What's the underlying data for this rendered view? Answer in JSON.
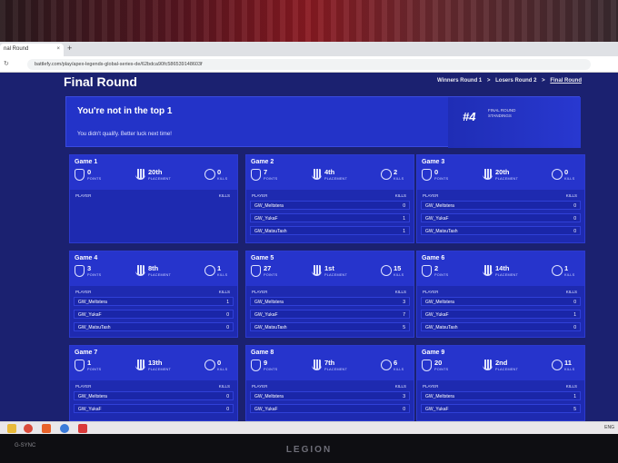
{
  "browser": {
    "tab_title": "nal Round",
    "tab_close": "×",
    "new_tab": "+",
    "url": "battlefy.com/play/apex-legends-global-series-de/62bdca90fc586539148603f"
  },
  "page": {
    "title": "Final Round",
    "breadcrumb": [
      "Winners Round 1",
      ">",
      "Losers Round 2",
      ">",
      "Final Round"
    ]
  },
  "banner": {
    "title": "You're not in the top 1",
    "subtitle": "You didn't qualify. Better luck next time!",
    "rank": "#4",
    "rank_label_1": "FINAL ROUND",
    "rank_label_2": "STANDINGS"
  },
  "labels": {
    "points": "POINTS",
    "placement": "PLACEMENT",
    "kills": "KILLS",
    "player": "PLAYER",
    "kills_col": "KILLS"
  },
  "games": [
    {
      "title": "Game 1",
      "points": "0",
      "placement": "20th",
      "kills": "0",
      "players": []
    },
    {
      "title": "Game 2",
      "points": "7",
      "placement": "4th",
      "kills": "2",
      "players": [
        {
          "name": "GW_Meltstera",
          "kills": "0"
        },
        {
          "name": "GW_YukaF",
          "kills": "1"
        },
        {
          "name": "GW_MatsuTash",
          "kills": "1"
        }
      ]
    },
    {
      "title": "Game 3",
      "points": "0",
      "placement": "20th",
      "kills": "0",
      "players": [
        {
          "name": "GW_Meltstera",
          "kills": "0"
        },
        {
          "name": "GW_YukaF",
          "kills": "0"
        },
        {
          "name": "GW_MatsuTash",
          "kills": "0"
        }
      ]
    },
    {
      "title": "Game 4",
      "points": "3",
      "placement": "8th",
      "kills": "1",
      "players": [
        {
          "name": "GW_Meltstera",
          "kills": "1"
        },
        {
          "name": "GW_YukaF",
          "kills": "0"
        },
        {
          "name": "GW_MatsuTash",
          "kills": "0"
        }
      ]
    },
    {
      "title": "Game 5",
      "points": "27",
      "placement": "1st",
      "kills": "15",
      "players": [
        {
          "name": "GW_Meltstera",
          "kills": "3"
        },
        {
          "name": "GW_YukaF",
          "kills": "7"
        },
        {
          "name": "GW_MatsuTash",
          "kills": "5"
        }
      ]
    },
    {
      "title": "Game 6",
      "points": "2",
      "placement": "14th",
      "kills": "1",
      "players": [
        {
          "name": "GW_Meltstera",
          "kills": "0"
        },
        {
          "name": "GW_YukaF",
          "kills": "1"
        },
        {
          "name": "GW_MatsuTash",
          "kills": "0"
        }
      ]
    },
    {
      "title": "Game 7",
      "points": "1",
      "placement": "13th",
      "kills": "0",
      "players": [
        {
          "name": "GW_Meltstera",
          "kills": "0"
        },
        {
          "name": "GW_YukaF",
          "kills": "0"
        }
      ]
    },
    {
      "title": "Game 8",
      "points": "9",
      "placement": "7th",
      "kills": "6",
      "players": [
        {
          "name": "GW_Meltstera",
          "kills": "3"
        },
        {
          "name": "GW_YukaF",
          "kills": "0"
        }
      ]
    },
    {
      "title": "Game 9",
      "points": "20",
      "placement": "2nd",
      "kills": "11",
      "players": [
        {
          "name": "GW_Meltstera",
          "kills": "1"
        },
        {
          "name": "GW_YukaF",
          "kills": "5"
        }
      ]
    }
  ],
  "taskbar": {
    "tray_text": "ENG"
  },
  "bezel": {
    "brand": "LEGION",
    "gsync": "G-SYNC"
  }
}
